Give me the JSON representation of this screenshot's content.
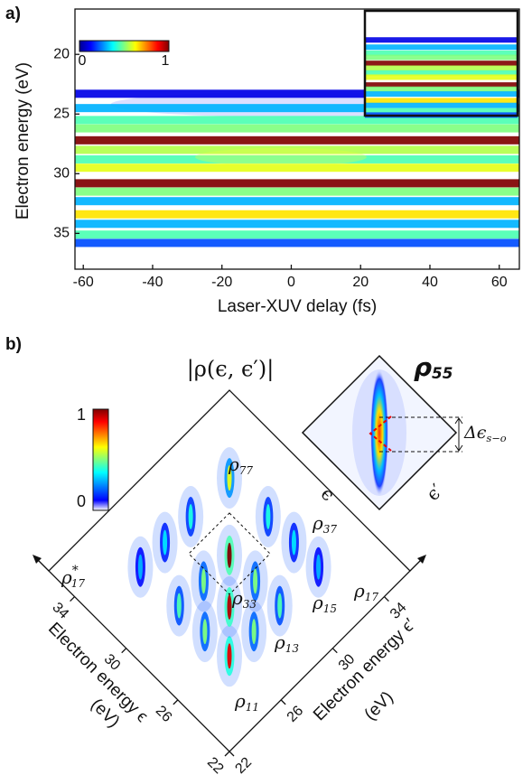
{
  "chart_data": [
    {
      "type": "heatmap",
      "label": "a)",
      "xlabel": "Laser-XUV delay (fs)",
      "ylabel": "Electron energy (eV)",
      "xlim": [
        -62.4,
        65.8
      ],
      "xticks": [
        -60,
        -40,
        -20,
        0,
        20,
        40,
        60
      ],
      "ylim": [
        38,
        16.2
      ],
      "yticks": [
        20,
        25,
        30,
        35
      ],
      "colorbar_ticks": [
        0,
        1
      ],
      "y": [
        23.3,
        24.5,
        25.5,
        26.2,
        27.2,
        28.0,
        28.8,
        29.5,
        30.8,
        31.5,
        32.3,
        33.4,
        34.2,
        35.1,
        35.8
      ],
      "values": [
        0.1,
        0.3,
        0.45,
        0.5,
        1.0,
        0.55,
        0.45,
        0.6,
        1.0,
        0.5,
        0.3,
        0.65,
        0.3,
        0.45,
        0.2
      ]
    },
    {
      "type": "density-matrix",
      "label": "b)",
      "title": "|ρ(ϵ, ϵ′)|",
      "xlabel": "Electron energy ϵ′",
      "ylabel": "Electron energy ϵ",
      "unit": "(eV)",
      "xlim": [
        22,
        36
      ],
      "xticks": [
        22,
        26,
        30,
        34
      ],
      "ylim": [
        22,
        36
      ],
      "yticks": [
        22,
        26,
        30,
        34
      ],
      "colorbar_ticks": [
        0,
        1
      ],
      "peaks": {
        "epsilon": [
          25.7,
          25.7,
          25.7,
          25.7,
          27.6,
          27.6,
          27.6,
          27.6,
          29.6,
          29.6,
          29.6,
          29.6,
          32.6,
          32.6,
          32.6,
          32.6
        ],
        "epsilon_prime": [
          25.7,
          27.6,
          29.6,
          32.6,
          25.7,
          27.6,
          29.6,
          32.6,
          25.7,
          27.6,
          29.6,
          32.6,
          25.7,
          27.6,
          29.6,
          32.6
        ],
        "values": [
          0.9,
          0.5,
          0.45,
          0.3,
          0.5,
          0.95,
          0.5,
          0.35,
          0.45,
          0.5,
          1.0,
          0.4,
          0.3,
          0.35,
          0.4,
          0.6
        ]
      },
      "annotations": [
        {
          "symbol": "ρ",
          "sub": "77"
        },
        {
          "symbol": "ρ",
          "sub": "37"
        },
        {
          "symbol": "ρ",
          "sub": "17"
        },
        {
          "symbol": "ρ",
          "sup": "*",
          "sub": "17"
        },
        {
          "symbol": "ρ",
          "sub": "33"
        },
        {
          "symbol": "ρ",
          "sub": "15"
        },
        {
          "symbol": "ρ",
          "sub": "13"
        },
        {
          "symbol": "ρ",
          "sub": "11"
        }
      ],
      "inset": {
        "title": {
          "symbol": "ρ",
          "sub": "55"
        },
        "epsilon_label": "ϵ",
        "epsilon_prime_label": "ϵ′",
        "splitting": {
          "symbol": "Δϵ",
          "sub": "s−o"
        }
      }
    }
  ]
}
